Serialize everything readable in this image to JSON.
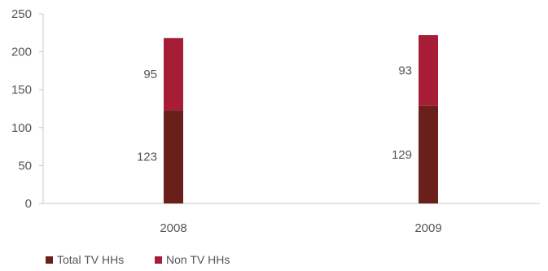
{
  "chart_data": {
    "type": "bar",
    "stacked": true,
    "categories": [
      "2008",
      "2009"
    ],
    "series": [
      {
        "name": "Total TV HHs",
        "values": [
          123,
          129
        ],
        "color": "#6b1f1a"
      },
      {
        "name": "Non TV HHs",
        "values": [
          95,
          93
        ],
        "color": "#a61d35"
      }
    ],
    "ylim": [
      0,
      250
    ],
    "yticks": [
      0,
      50,
      100,
      150,
      200,
      250
    ],
    "grid": false,
    "legend_position": "bottom-left",
    "data_labels": "left-of-segment"
  }
}
